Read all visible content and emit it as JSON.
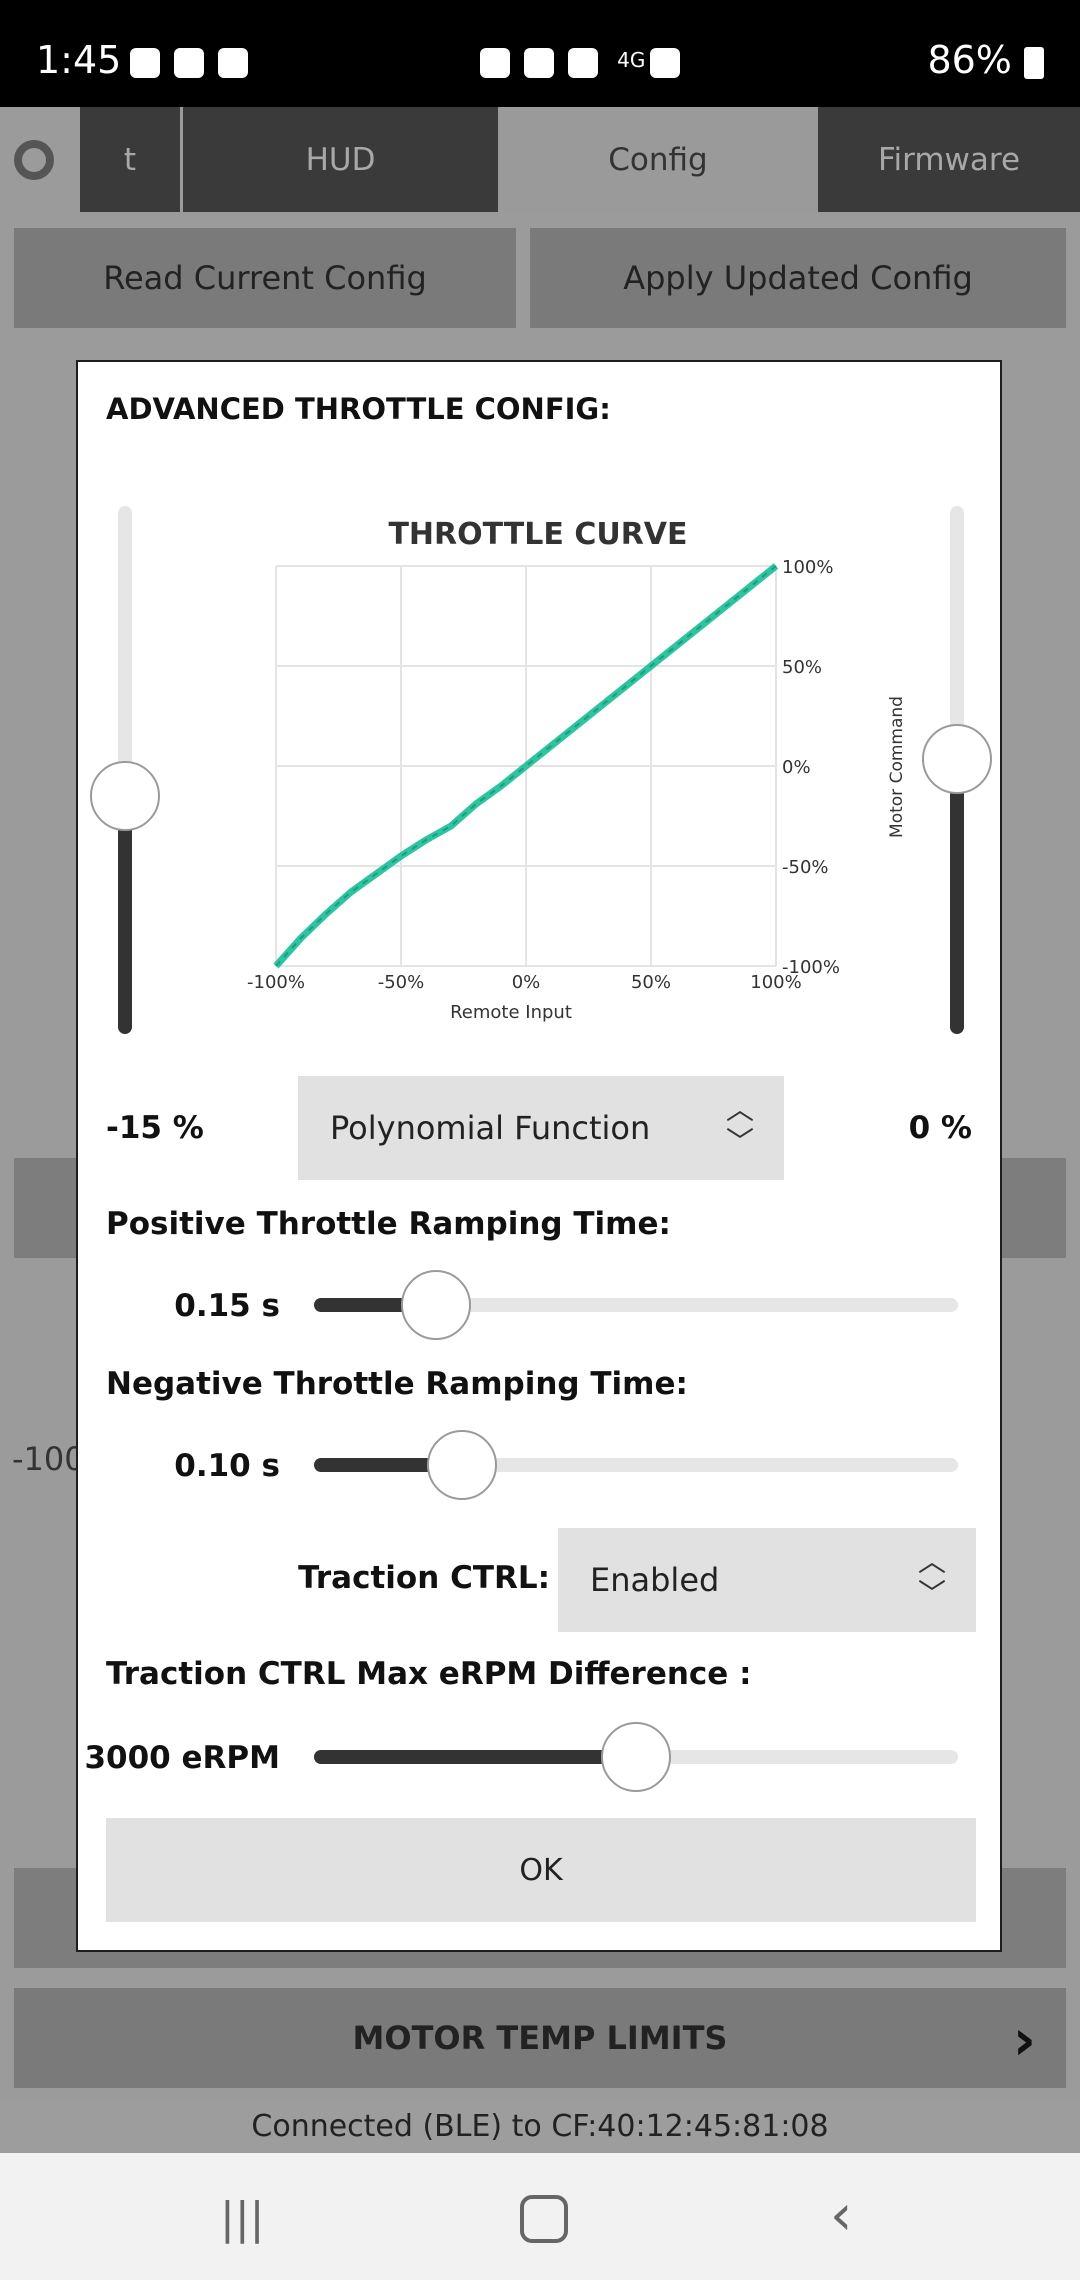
{
  "status_bar": {
    "time": "1:45",
    "signal": "4G",
    "battery": "86%"
  },
  "tabs": [
    {
      "label": "t"
    },
    {
      "label": "HUD"
    },
    {
      "label": "Config"
    },
    {
      "label": "Firmware"
    }
  ],
  "bg_buttons": {
    "read": "Read Current Config",
    "apply": "Apply Updated Config"
  },
  "bg_labels": {
    "left_value": "-100",
    "motor_temp": "MOTOR TEMP LIMITS"
  },
  "connection": "Connected (BLE) to CF:40:12:45:81:08",
  "modal": {
    "title": "ADVANCED THROTTLE CONFIG:",
    "left_value": "-15 %",
    "right_value": "0 %",
    "function_select": "Polynomial Function",
    "pos_ramp_label": "Positive Throttle Ramping Time:",
    "pos_ramp_value": "0.15 s",
    "pos_ramp_fraction": 0.19,
    "neg_ramp_label": "Negative Throttle Ramping Time:",
    "neg_ramp_value": "0.10 s",
    "neg_ramp_fraction": 0.23,
    "traction_label": "Traction CTRL:",
    "traction_select": "Enabled",
    "erpm_label": "Traction CTRL Max eRPM Difference :",
    "erpm_value": "3000 eRPM",
    "erpm_fraction": 0.5,
    "ok_label": "OK",
    "left_vslider_fraction": 0.45,
    "right_vslider_fraction": 0.52
  },
  "chart_data": {
    "type": "line",
    "title": "THROTTLE CURVE",
    "xlabel": "Remote Input",
    "ylabel": "Motor Command",
    "x_ticks": [
      "-100%",
      "-50%",
      "0%",
      "50%",
      "100%"
    ],
    "y_ticks": [
      "100%",
      "50%",
      "0%",
      "-50%",
      "-100%"
    ],
    "xlim": [
      -100,
      100
    ],
    "ylim": [
      -100,
      100
    ],
    "grid": true,
    "series": [
      {
        "color": "#2ec4a0",
        "x": [
          -100,
          -90,
          -80,
          -70,
          -60,
          -50,
          -40,
          -30,
          -20,
          -10,
          0,
          10,
          20,
          30,
          40,
          50,
          60,
          70,
          80,
          90,
          100
        ],
        "y": [
          -100,
          -86,
          -74,
          -63,
          -54,
          -45,
          -37,
          -30,
          -19,
          -10,
          0,
          10,
          20,
          30,
          40,
          50,
          60,
          70,
          80,
          90,
          100
        ]
      }
    ]
  }
}
